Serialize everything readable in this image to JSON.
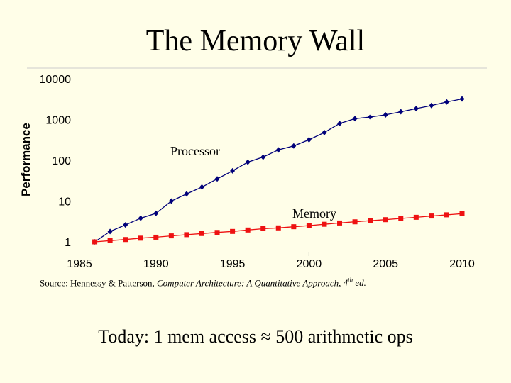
{
  "slide": {
    "title": "The Memory Wall",
    "source_prefix": "Source: Hennessy & Patterson, ",
    "source_book": "Computer Architecture: A Quantitative Approach",
    "source_sep": ", ",
    "source_edition_num": "4",
    "source_edition_sup": "th",
    "source_suffix": " ed.",
    "footer": "Today: 1 mem access ≈ 500 arithmetic ops"
  },
  "colors": {
    "background": "#fffee8",
    "processor": "#00007a",
    "memory": "#ee1111",
    "axis": "#808080"
  },
  "chart_data": {
    "type": "line",
    "title": "",
    "xlabel": "",
    "ylabel": "Performance",
    "yscale": "log",
    "xlim": [
      1985,
      2010
    ],
    "ylim": [
      1,
      10000
    ],
    "x_ticks": [
      "1985",
      "1990",
      "1995",
      "2000",
      "2005",
      "2010"
    ],
    "y_ticks": [
      "1",
      "10",
      "100",
      "1000",
      "10000"
    ],
    "reference_line_y": 10,
    "series": [
      {
        "name": "Processor",
        "marker": "diamond",
        "x": [
          1986,
          1987,
          1988,
          1989,
          1990,
          1991,
          1992,
          1993,
          1994,
          1995,
          1996,
          1997,
          1998,
          1999,
          2000,
          2001,
          2002,
          2003,
          2004,
          2005,
          2006,
          2007,
          2008,
          2009,
          2010
        ],
        "values": [
          1,
          1.8,
          2.6,
          3.8,
          5,
          10,
          15,
          22,
          35,
          55,
          90,
          120,
          180,
          225,
          320,
          480,
          800,
          1050,
          1150,
          1300,
          1550,
          1850,
          2200,
          2700,
          3200
        ]
      },
      {
        "name": "Memory",
        "marker": "square",
        "x": [
          1986,
          1987,
          1988,
          1989,
          1990,
          1991,
          1992,
          1993,
          1994,
          1995,
          1996,
          1997,
          1998,
          1999,
          2000,
          2001,
          2002,
          2003,
          2004,
          2005,
          2006,
          2007,
          2008,
          2009,
          2010
        ],
        "values": [
          1,
          1.07,
          1.14,
          1.23,
          1.3,
          1.4,
          1.5,
          1.6,
          1.7,
          1.8,
          1.95,
          2.1,
          2.2,
          2.35,
          2.5,
          2.7,
          2.9,
          3.1,
          3.3,
          3.5,
          3.75,
          4,
          4.3,
          4.6,
          4.9
        ]
      }
    ]
  }
}
